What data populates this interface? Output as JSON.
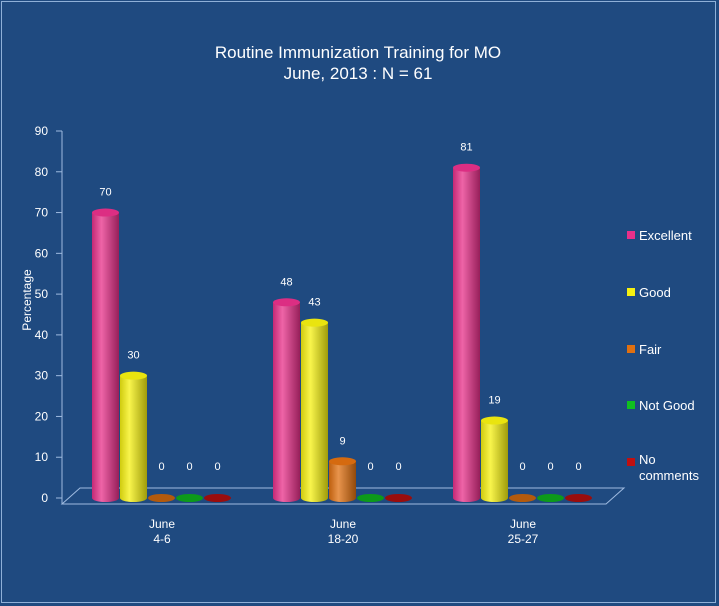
{
  "chart_data": {
    "type": "bar",
    "title": "Routine Immunization Training for MO",
    "subtitle": "June, 2013 : N = 61",
    "xlabel": "",
    "ylabel": "Percentage",
    "ylim": [
      0,
      90
    ],
    "yticks": [
      "0",
      "10",
      "20",
      "30",
      "40",
      "50",
      "60",
      "70",
      "80",
      "90"
    ],
    "categories": [
      [
        "June",
        "4-6"
      ],
      [
        "June",
        "18-20"
      ],
      [
        "June",
        "25-27"
      ]
    ],
    "series": [
      {
        "name": "Excellent",
        "color": "#e8308a",
        "values": [
          70,
          48,
          81
        ]
      },
      {
        "name": "Good",
        "color": "#f5f010",
        "values": [
          30,
          43,
          19
        ]
      },
      {
        "name": "Fair",
        "color": "#e07010",
        "values": [
          0,
          9,
          0
        ]
      },
      {
        "name": "Not Good",
        "color": "#10c020",
        "values": [
          0,
          0,
          0
        ]
      },
      {
        "name": "No comments",
        "color": "#c01010",
        "values": [
          0,
          0,
          0
        ]
      }
    ],
    "legend_position": "right",
    "grid": false
  }
}
